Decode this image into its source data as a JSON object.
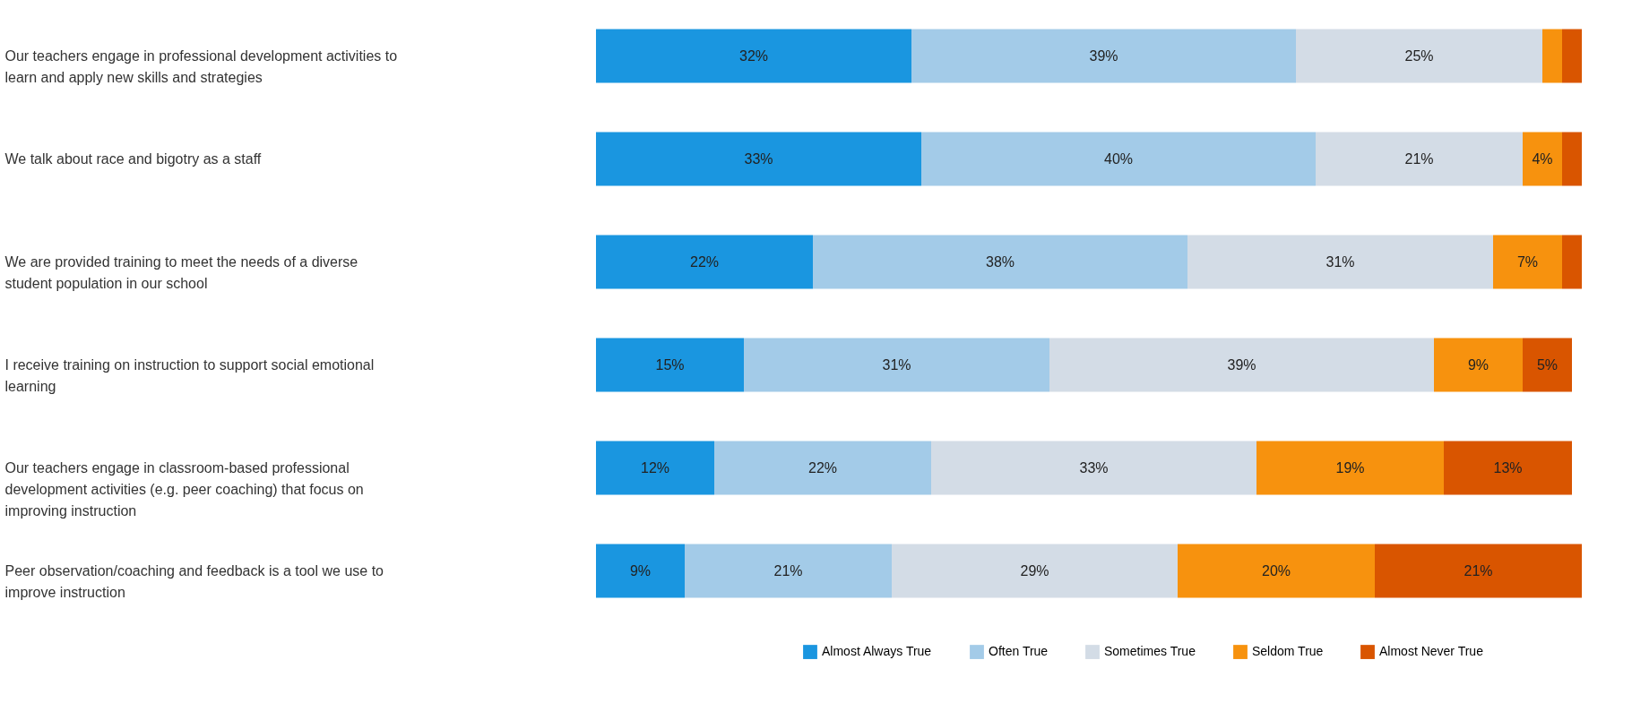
{
  "chart_data": {
    "type": "bar",
    "orientation": "horizontal",
    "stacked": true,
    "legend": "bottom right",
    "categories": [
      "Our teachers engage in professional development activities to learn and apply new skills and strategies",
      "We talk about race and bigotry as a staff",
      "We are provided training to meet the needs of a diverse student population in our school",
      "I receive training on instruction to support social emotional learning",
      "Our teachers engage in classroom-based professional development activities (e.g. peer coaching) that focus on improving instruction",
      "Peer observation/coaching and feedback is a tool we use to improve instruction"
    ],
    "series": [
      {
        "name": "Almost Always True",
        "color": "#1a96e0",
        "values": [
          32,
          33,
          22,
          15,
          12,
          9
        ],
        "value_labels": [
          "32%",
          "33%",
          "22%",
          "15%",
          "12%",
          "9%"
        ]
      },
      {
        "name": "Often True",
        "color": "#a3cbe8",
        "values": [
          39,
          40,
          38,
          31,
          22,
          21
        ],
        "value_labels": [
          "39%",
          "40%",
          "38%",
          "31%",
          "22%",
          "21%"
        ]
      },
      {
        "name": "Sometimes True",
        "color": "#d3dce6",
        "values": [
          25,
          21,
          31,
          39,
          33,
          29
        ],
        "value_labels": [
          "25%",
          "21%",
          "31%",
          "39%",
          "33%",
          "29%"
        ]
      },
      {
        "name": "Seldom True",
        "color": "#f7920e",
        "values": [
          2,
          4,
          7,
          9,
          19,
          20
        ],
        "value_labels": [
          null,
          "4%",
          "7%",
          "9%",
          "19%",
          "20%"
        ]
      },
      {
        "name": "Almost Never True",
        "color": "#d95500",
        "values": [
          2,
          2,
          2,
          5,
          13,
          21
        ],
        "value_labels": [
          null,
          null,
          null,
          "5%",
          "13%",
          "21%"
        ]
      }
    ]
  }
}
